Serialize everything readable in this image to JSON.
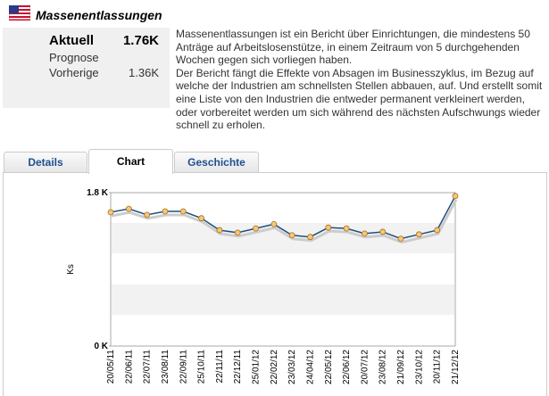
{
  "header": {
    "title": "Massenentlassungen"
  },
  "summary": {
    "actual_label": "Aktuell",
    "actual": "1.76K",
    "forecast_label": "Prognose",
    "previous_label": "Vorherige",
    "previous": "1.36K"
  },
  "description": [
    "Massenentlassungen ist ein Bericht über Einrichtungen, die mindestens 50 Anträge auf Arbeitslosenstütze, in einem Zeitraum von 5 durchgehenden Wochen gegen sich vorliegen haben.",
    "Der Bericht fängt die Effekte von Absagen im Businesszyklus, im Bezug auf welche der Industrien am schnellsten Stellen abbauen, auf. Und erstellt somit eine Liste von den Industrien die entweder permanent verkleinert werden, oder vorbereitet werden um sich während des nächsten Aufschwungs wieder schnell zu erholen."
  ],
  "tabs": [
    "Details",
    "Chart",
    "Geschichte"
  ],
  "chart_data": {
    "type": "line",
    "ylabel": "Ks",
    "categories": [
      "20/05/11",
      "22/06/11",
      "22/07/11",
      "23/08/11",
      "22/09/11",
      "25/10/11",
      "22/11/11",
      "22/12/11",
      "25/01/12",
      "22/02/12",
      "23/03/12",
      "24/04/12",
      "22/05/12",
      "22/06/12",
      "20/07/12",
      "23/08/12",
      "21/09/12",
      "23/10/12",
      "20/11/12",
      "21/12/12"
    ],
    "values": [
      1.57,
      1.61,
      1.54,
      1.58,
      1.58,
      1.5,
      1.36,
      1.33,
      1.38,
      1.43,
      1.3,
      1.28,
      1.39,
      1.38,
      1.32,
      1.34,
      1.26,
      1.31,
      1.36,
      1.76
    ],
    "color": "#1d4f7c",
    "ylim": [
      0,
      1.8
    ],
    "yticks": [
      {
        "value": 0,
        "label": "0 K"
      },
      {
        "value": 1.8,
        "label": "1.8 K"
      }
    ]
  }
}
